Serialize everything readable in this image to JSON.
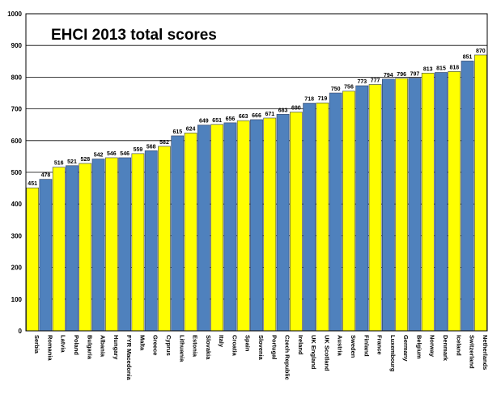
{
  "chart_data": {
    "type": "bar",
    "title": "EHCI 2013 total scores",
    "xlabel": "",
    "ylabel": "",
    "ylim": [
      0,
      1000
    ],
    "yticks": [
      0,
      100,
      200,
      300,
      400,
      500,
      600,
      700,
      800,
      900,
      1000
    ],
    "grid": "horizontal",
    "legend": "none",
    "colors": {
      "yellow": "#FFFF00",
      "blue": "#4F81BD",
      "bar_border": "#2F3F5F",
      "gridline": "#000000",
      "plot_border": "#000000"
    },
    "bar_color_pattern": "alternating yellow/blue starting with yellow",
    "categories": [
      "Serbia",
      "Romania",
      "Latvia",
      "Poland",
      "Bulgaria",
      "Albania",
      "Hungary",
      "FYR Macedonia",
      "Malta",
      "Greece",
      "Cyprus",
      "Lithuania",
      "Estonia",
      "Slovakia",
      "Italy",
      "Croatia",
      "Spain",
      "Slovenia",
      "Portugal",
      "Czech Republic",
      "Ireland",
      "UK England",
      "UK Scotland",
      "Austria",
      "Sweden",
      "Finland",
      "France",
      "Luxembourg",
      "Germany",
      "Belgium",
      "Norway",
      "Denmark",
      "Iceland",
      "Switzerland",
      "Netherlands"
    ],
    "values": [
      451,
      478,
      516,
      521,
      528,
      542,
      546,
      546,
      559,
      568,
      582,
      615,
      624,
      649,
      651,
      656,
      663,
      666,
      671,
      683,
      690,
      718,
      719,
      750,
      756,
      773,
      777,
      794,
      796,
      797,
      813,
      815,
      818,
      851,
      870
    ]
  }
}
